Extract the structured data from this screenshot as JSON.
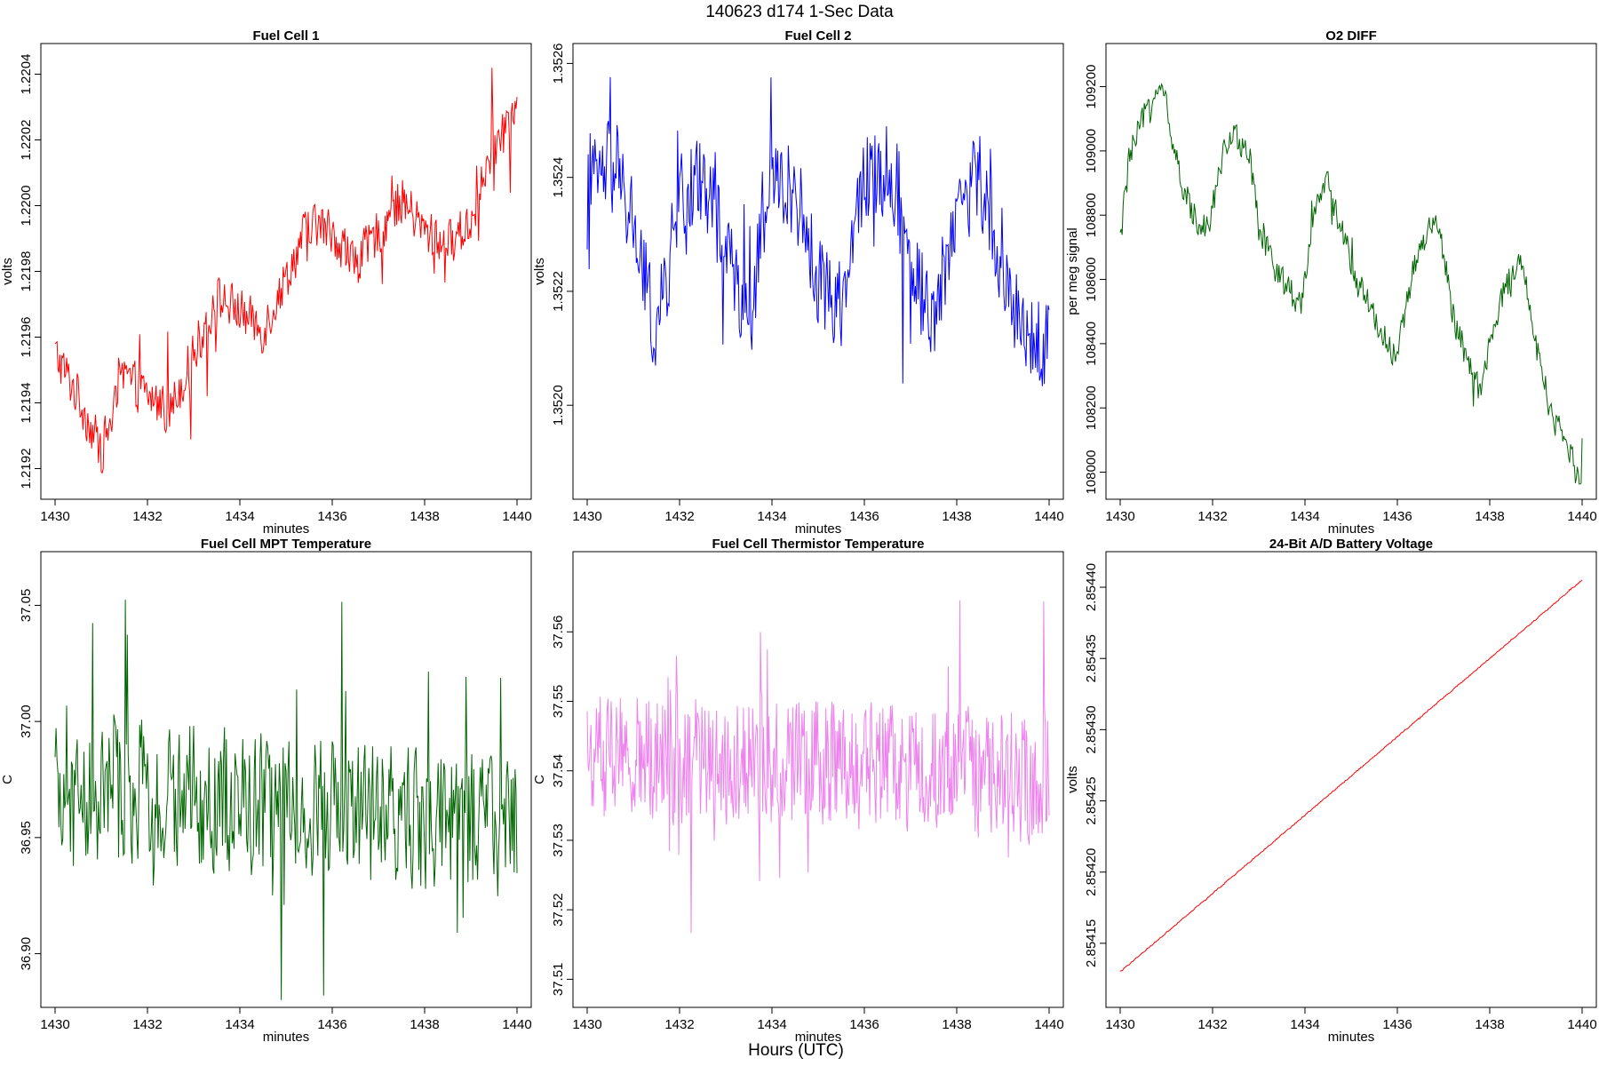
{
  "title": "140623   d174   1-Sec Data",
  "xlabel_outer": "Hours (UTC)",
  "chart_data": [
    {
      "type": "line",
      "title": "Fuel Cell 1",
      "xlabel": "minutes",
      "ylabel": "volts",
      "color": "#ff0000",
      "xlim": [
        1430,
        1440
      ],
      "ylim": [
        1.21915,
        1.22045
      ],
      "xticks": [
        "1430",
        "1432",
        "1434",
        "1436",
        "1438",
        "1440"
      ],
      "yticks": [
        "1.2192",
        "1.2194",
        "1.2196",
        "1.2198",
        "1.2200",
        "1.2202",
        "1.2204"
      ],
      "x": [
        1430.0,
        1430.5,
        1431.0,
        1431.5,
        1432.0,
        1432.5,
        1433.0,
        1433.5,
        1434.0,
        1434.5,
        1435.0,
        1435.5,
        1436.0,
        1436.5,
        1437.0,
        1437.5,
        1438.0,
        1438.5,
        1439.0,
        1439.5,
        1440.0
      ],
      "y": [
        1.21955,
        1.21942,
        1.21925,
        1.21948,
        1.21942,
        1.21938,
        1.21955,
        1.21972,
        1.21968,
        1.21962,
        1.21978,
        1.21995,
        1.21992,
        1.21982,
        1.21992,
        1.22002,
        1.21992,
        1.21988,
        1.21995,
        1.22018,
        1.22028
      ],
      "noise": 7e-05,
      "points": 480,
      "spikes": 0.0002
    },
    {
      "type": "line",
      "title": "Fuel Cell 2",
      "xlabel": "minutes",
      "ylabel": "volts",
      "color": "#0000ff",
      "xlim": [
        1430,
        1440
      ],
      "ylim": [
        1.35186,
        1.35261
      ],
      "xticks": [
        "1430",
        "1432",
        "1434",
        "1436",
        "1438",
        "1440"
      ],
      "yticks": [
        "1.3520",
        "1.3522",
        "1.3524",
        "1.3526"
      ],
      "x": [
        1430.0,
        1430.5,
        1431.0,
        1431.5,
        1432.0,
        1432.5,
        1433.0,
        1433.5,
        1434.0,
        1434.5,
        1435.0,
        1435.5,
        1436.0,
        1436.5,
        1437.0,
        1437.5,
        1438.0,
        1438.5,
        1439.0,
        1439.5,
        1440.0
      ],
      "y": [
        1.35238,
        1.35242,
        1.35232,
        1.35212,
        1.35236,
        1.3524,
        1.35228,
        1.35215,
        1.3524,
        1.35238,
        1.35222,
        1.35218,
        1.3524,
        1.35242,
        1.35225,
        1.35215,
        1.35235,
        1.3524,
        1.35222,
        1.35212,
        1.3521
      ],
      "noise": 8e-05,
      "points": 480,
      "spikes": 0.00022
    },
    {
      "type": "line",
      "title": "O2 DIFF",
      "xlabel": "minutes",
      "ylabel": "per meg signal",
      "color": "#006400",
      "xlim": [
        1430,
        1440
      ],
      "ylim": [
        107960,
        109290
      ],
      "xticks": [
        "1430",
        "1432",
        "1434",
        "1436",
        "1438",
        "1440"
      ],
      "yticks": [
        "108000",
        "108200",
        "108400",
        "108600",
        "108800",
        "109000",
        "109200"
      ],
      "x": [
        1430.0,
        1430.2,
        1430.5,
        1430.8,
        1431.0,
        1431.3,
        1431.6,
        1431.9,
        1432.2,
        1432.5,
        1432.8,
        1433.0,
        1433.3,
        1433.6,
        1433.9,
        1434.2,
        1434.5,
        1434.8,
        1435.1,
        1435.4,
        1435.7,
        1436.0,
        1436.3,
        1436.6,
        1436.9,
        1437.2,
        1437.5,
        1437.8,
        1438.1,
        1438.4,
        1438.7,
        1439.0,
        1439.3,
        1439.6,
        1440.0
      ],
      "y": [
        108720,
        108980,
        109100,
        109200,
        109150,
        108900,
        108800,
        108760,
        108980,
        109050,
        109000,
        108750,
        108650,
        108580,
        108520,
        108800,
        108900,
        108750,
        108600,
        108520,
        108420,
        108360,
        108600,
        108740,
        108760,
        108500,
        108350,
        108250,
        108460,
        108600,
        108650,
        108400,
        108200,
        108100,
        107990
      ],
      "noise": 45,
      "points": 480,
      "spikes": 90
    },
    {
      "type": "line",
      "title": "Fuel Cell MPT Temperature",
      "xlabel": "minutes",
      "ylabel": "C",
      "color": "#006400",
      "xlim": [
        1430,
        1440
      ],
      "ylim": [
        36.883,
        37.067
      ],
      "xticks": [
        "1430",
        "1432",
        "1434",
        "1436",
        "1438",
        "1440"
      ],
      "yticks": [
        "36.90",
        "36.95",
        "37.00",
        "37.05"
      ],
      "x": [
        1430.0,
        1432.0,
        1434.0,
        1436.0,
        1438.0,
        1440.0
      ],
      "y": [
        36.965,
        36.97,
        36.965,
        36.962,
        36.958,
        36.955
      ],
      "noise": 0.03,
      "points": 480,
      "spikes": 0.075
    },
    {
      "type": "line",
      "title": "Fuel Cell Thermistor Temperature",
      "xlabel": "minutes",
      "ylabel": "C",
      "color": "#ee82ee",
      "xlim": [
        1430,
        1440
      ],
      "ylim": [
        37.508,
        37.5695
      ],
      "xticks": [
        "1430",
        "1432",
        "1434",
        "1436",
        "1438",
        "1440"
      ],
      "yticks": [
        "37.51",
        "37.52",
        "37.53",
        "37.54",
        "37.55",
        "37.56"
      ],
      "x": [
        1430.0,
        1432.0,
        1434.0,
        1436.0,
        1438.0,
        1440.0
      ],
      "y": [
        37.542,
        37.542,
        37.541,
        37.541,
        37.54,
        37.539
      ],
      "noise": 0.009,
      "points": 600,
      "spikes": 0.022
    },
    {
      "type": "line",
      "title": "24-Bit A/D Battery Voltage",
      "xlabel": "minutes",
      "ylabel": "volts",
      "color": "#ff0000",
      "xlim": [
        1430,
        1440
      ],
      "ylim": [
        2.854115,
        2.854415
      ],
      "xticks": [
        "1430",
        "1432",
        "1434",
        "1436",
        "1438",
        "1440"
      ],
      "yticks": [
        "2.85415",
        "2.85420",
        "2.85425",
        "2.85430",
        "2.85435",
        "2.85440"
      ],
      "x": [
        1430.0,
        1440.0
      ],
      "y": [
        2.85413,
        2.854405
      ],
      "noise": 4e-07,
      "points": 480,
      "spikes": 6e-07
    }
  ]
}
